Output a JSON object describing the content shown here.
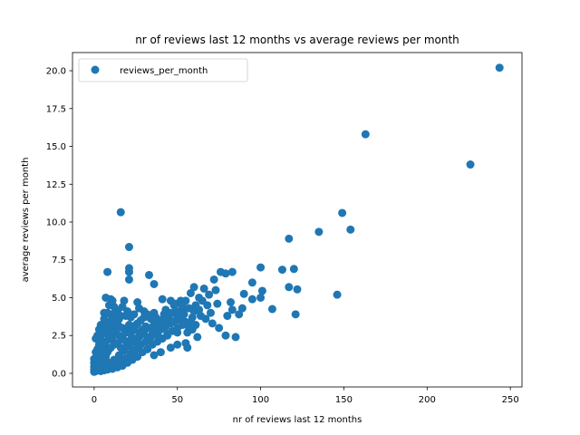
{
  "chart_data": {
    "type": "scatter",
    "title": "nr of reviews last 12 months vs average reviews per month",
    "xlabel": "nr of reviews last 12 months",
    "ylabel": "average reviews per month",
    "xlim": [
      -13,
      257
    ],
    "ylim": [
      -0.9,
      21.2
    ],
    "xticks": [
      0,
      50,
      100,
      150,
      200,
      250
    ],
    "yticks": [
      0.0,
      2.5,
      5.0,
      7.5,
      10.0,
      12.5,
      15.0,
      17.5,
      20.0
    ],
    "xtick_labels": [
      "0",
      "50",
      "100",
      "150",
      "200",
      "250"
    ],
    "ytick_labels": [
      "0.0",
      "2.5",
      "5.0",
      "7.5",
      "10.0",
      "12.5",
      "15.0",
      "17.5",
      "20.0"
    ],
    "grid": false,
    "legend": {
      "position": "upper-left",
      "entries": [
        "reviews_per_month"
      ]
    },
    "series": [
      {
        "name": "reviews_per_month",
        "color": "#1f77b4",
        "points": [
          [
            243.5,
            20.2
          ],
          [
            163,
            15.8
          ],
          [
            226,
            13.8
          ],
          [
            149,
            10.6
          ],
          [
            16,
            10.65
          ],
          [
            154,
            9.5
          ],
          [
            135,
            9.35
          ],
          [
            117,
            8.9
          ],
          [
            21,
            8.35
          ],
          [
            100,
            7.0
          ],
          [
            21,
            6.95
          ],
          [
            113,
            6.85
          ],
          [
            120,
            6.9
          ],
          [
            8,
            6.7
          ],
          [
            21,
            6.7
          ],
          [
            33,
            6.5
          ],
          [
            76,
            6.7
          ],
          [
            79,
            6.6
          ],
          [
            83,
            6.7
          ],
          [
            72,
            6.2
          ],
          [
            95,
            6.0
          ],
          [
            36,
            5.9
          ],
          [
            21,
            6.2
          ],
          [
            117,
            5.7
          ],
          [
            122,
            5.55
          ],
          [
            101,
            5.45
          ],
          [
            146,
            5.2
          ],
          [
            90,
            5.25
          ],
          [
            100,
            5.0
          ],
          [
            107,
            4.25
          ],
          [
            121,
            3.9
          ],
          [
            82,
            4.7
          ],
          [
            80,
            3.8
          ],
          [
            85,
            2.4
          ],
          [
            79,
            2.5
          ],
          [
            89,
            4.3
          ],
          [
            83,
            4.2
          ],
          [
            87,
            3.9
          ],
          [
            95,
            4.9
          ],
          [
            70,
            4.0
          ],
          [
            7,
            5.0
          ],
          [
            10,
            4.9
          ],
          [
            18,
            4.8
          ],
          [
            26,
            4.7
          ],
          [
            41,
            4.9
          ],
          [
            46,
            4.8
          ],
          [
            52,
            4.8
          ],
          [
            58,
            5.3
          ],
          [
            60,
            5.7
          ],
          [
            66,
            5.6
          ],
          [
            73,
            5.5
          ],
          [
            69,
            5.2
          ],
          [
            74,
            4.6
          ],
          [
            63,
            5.0
          ],
          [
            54,
            4.3
          ],
          [
            48,
            4.5
          ],
          [
            60,
            4.1
          ],
          [
            67,
            3.6
          ],
          [
            71,
            3.3
          ],
          [
            75,
            3.0
          ],
          [
            64,
            3.8
          ],
          [
            58,
            3.4
          ],
          [
            56,
            2.7
          ],
          [
            62,
            2.4
          ],
          [
            55,
            2.0
          ],
          [
            50,
            1.9
          ],
          [
            56,
            1.7
          ],
          [
            44,
            2.6
          ],
          [
            38,
            2.8
          ],
          [
            34,
            3.6
          ],
          [
            30,
            4.1
          ],
          [
            27,
            4.3
          ],
          [
            24,
            3.9
          ],
          [
            22,
            3.7
          ],
          [
            19,
            3.8
          ],
          [
            16,
            3.8
          ],
          [
            14,
            3.4
          ],
          [
            12,
            4.4
          ],
          [
            10,
            3.9
          ],
          [
            8,
            4.0
          ],
          [
            6,
            3.6
          ],
          [
            4,
            3.2
          ],
          [
            3,
            2.9
          ],
          [
            2,
            2.5
          ],
          [
            1,
            2.3
          ],
          [
            5,
            2.0
          ],
          [
            8,
            2.7
          ],
          [
            12,
            2.9
          ],
          [
            17,
            2.4
          ],
          [
            22,
            2.2
          ],
          [
            27,
            1.8
          ],
          [
            32,
            1.6
          ],
          [
            36,
            1.2
          ],
          [
            40,
            1.4
          ],
          [
            46,
            1.7
          ],
          [
            50,
            2.7
          ],
          [
            42,
            3.9
          ],
          [
            37,
            3.3
          ],
          [
            30,
            2.8
          ],
          [
            25,
            3.2
          ],
          [
            20,
            2.9
          ],
          [
            15,
            3.1
          ],
          [
            11,
            2.2
          ],
          [
            9,
            1.6
          ],
          [
            7,
            1.1
          ],
          [
            5,
            0.8
          ],
          [
            3,
            0.6
          ],
          [
            2,
            1.0
          ],
          [
            1,
            1.4
          ],
          [
            1,
            0.7
          ],
          [
            0,
            0.1
          ],
          [
            0,
            0.25
          ],
          [
            0,
            0.45
          ],
          [
            0,
            0.7
          ],
          [
            0,
            0.95
          ],
          [
            1,
            0.15
          ],
          [
            1,
            0.35
          ],
          [
            2,
            0.2
          ],
          [
            2,
            0.45
          ],
          [
            3,
            0.3
          ],
          [
            4,
            0.15
          ],
          [
            4,
            0.5
          ],
          [
            5,
            0.35
          ],
          [
            6,
            0.2
          ],
          [
            6,
            0.6
          ],
          [
            7,
            0.4
          ],
          [
            8,
            0.25
          ],
          [
            9,
            0.7
          ],
          [
            10,
            0.45
          ],
          [
            11,
            0.3
          ],
          [
            12,
            0.9
          ],
          [
            13,
            0.6
          ],
          [
            14,
            0.4
          ],
          [
            15,
            1.2
          ],
          [
            16,
            0.8
          ],
          [
            17,
            0.5
          ],
          [
            18,
            1.5
          ],
          [
            19,
            1.0
          ],
          [
            20,
            0.7
          ],
          [
            21,
            1.8
          ],
          [
            22,
            1.3
          ],
          [
            23,
            0.9
          ],
          [
            24,
            2.1
          ],
          [
            25,
            1.6
          ],
          [
            26,
            1.1
          ],
          [
            27,
            2.4
          ],
          [
            28,
            1.9
          ],
          [
            29,
            1.4
          ],
          [
            30,
            2.6
          ],
          [
            31,
            2.1
          ],
          [
            32,
            1.6
          ],
          [
            33,
            3.0
          ],
          [
            34,
            2.4
          ],
          [
            35,
            1.9
          ],
          [
            36,
            3.2
          ],
          [
            37,
            2.6
          ],
          [
            38,
            2.1
          ],
          [
            39,
            3.4
          ],
          [
            40,
            2.9
          ],
          [
            41,
            2.3
          ],
          [
            42,
            3.6
          ],
          [
            43,
            3.1
          ],
          [
            44,
            2.5
          ],
          [
            45,
            3.8
          ],
          [
            46,
            3.3
          ],
          [
            47,
            2.8
          ],
          [
            48,
            4.0
          ],
          [
            49,
            3.5
          ],
          [
            50,
            3.0
          ],
          [
            51,
            4.1
          ],
          [
            52,
            3.6
          ],
          [
            53,
            3.2
          ],
          [
            54,
            3.9
          ],
          [
            55,
            3.4
          ],
          [
            57,
            4.3
          ],
          [
            59,
            3.7
          ],
          [
            61,
            4.5
          ],
          [
            63,
            4.2
          ],
          [
            65,
            4.8
          ],
          [
            68,
            4.5
          ],
          [
            3,
            0.9
          ],
          [
            4,
            1.2
          ],
          [
            5,
            1.5
          ],
          [
            6,
            1.8
          ],
          [
            7,
            2.1
          ],
          [
            8,
            1.4
          ],
          [
            9,
            2.4
          ],
          [
            10,
            1.7
          ],
          [
            11,
            2.6
          ],
          [
            12,
            1.9
          ],
          [
            13,
            2.8
          ],
          [
            14,
            2.0
          ],
          [
            15,
            2.5
          ],
          [
            16,
            1.7
          ],
          [
            17,
            3.0
          ],
          [
            18,
            2.2
          ],
          [
            19,
            2.7
          ],
          [
            20,
            1.9
          ],
          [
            21,
            3.2
          ],
          [
            22,
            2.6
          ],
          [
            23,
            1.5
          ],
          [
            24,
            2.9
          ],
          [
            25,
            2.3
          ],
          [
            26,
            3.3
          ],
          [
            27,
            2.7
          ],
          [
            28,
            3.5
          ],
          [
            29,
            2.9
          ],
          [
            30,
            3.7
          ],
          [
            31,
            3.1
          ],
          [
            32,
            3.9
          ],
          [
            33,
            2.2
          ],
          [
            34,
            3.0
          ],
          [
            35,
            2.6
          ],
          [
            36,
            4.0
          ],
          [
            37,
            3.7
          ],
          [
            38,
            3.1
          ],
          [
            39,
            2.4
          ],
          [
            40,
            3.5
          ],
          [
            41,
            3.0
          ],
          [
            43,
            4.2
          ],
          [
            44,
            3.6
          ],
          [
            46,
            4.0
          ],
          [
            47,
            3.4
          ],
          [
            49,
            4.6
          ],
          [
            51,
            3.7
          ],
          [
            53,
            4.5
          ],
          [
            55,
            4.8
          ],
          [
            57,
            3.0
          ],
          [
            59,
            2.9
          ],
          [
            61,
            3.2
          ],
          [
            2,
            1.6
          ],
          [
            3,
            1.9
          ],
          [
            4,
            2.2
          ],
          [
            5,
            2.6
          ],
          [
            6,
            2.9
          ],
          [
            7,
            3.1
          ],
          [
            8,
            3.4
          ],
          [
            9,
            3.0
          ],
          [
            10,
            3.3
          ],
          [
            11,
            3.6
          ],
          [
            12,
            3.2
          ],
          [
            13,
            3.8
          ],
          [
            14,
            4.1
          ],
          [
            15,
            3.6
          ],
          [
            6,
            4.0
          ],
          [
            9,
            4.5
          ],
          [
            11,
            4.8
          ],
          [
            13,
            4.2
          ],
          [
            17,
            4.4
          ],
          [
            20,
            4.1
          ]
        ]
      }
    ]
  }
}
